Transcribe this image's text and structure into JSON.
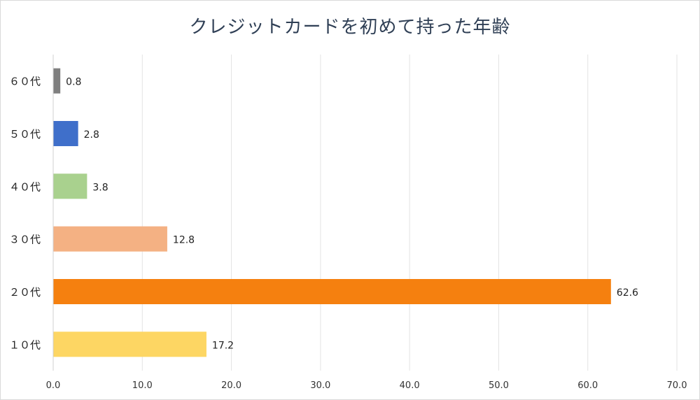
{
  "chart_data": {
    "type": "bar",
    "orientation": "horizontal",
    "title": "クレジットカードを初めて持った年齢",
    "categories": [
      "１０代",
      "２０代",
      "３０代",
      "４０代",
      "５０代",
      "６０代"
    ],
    "values": [
      17.2,
      62.6,
      12.8,
      3.8,
      2.8,
      0.8
    ],
    "value_labels": [
      "17.2",
      "62.6",
      "12.8",
      "3.8",
      "2.8",
      "0.8"
    ],
    "colors": [
      "#fdd663",
      "#f5800f",
      "#f4b183",
      "#a9d18e",
      "#3f6fca",
      "#7f7f7f"
    ],
    "xlim": [
      0,
      70
    ],
    "xticks": [
      0,
      10,
      20,
      30,
      40,
      50,
      60,
      70
    ],
    "xtick_labels": [
      "0.0",
      "10.0",
      "20.0",
      "30.0",
      "40.0",
      "50.0",
      "60.0",
      "70.0"
    ],
    "gridlines": true,
    "legend": "none"
  }
}
